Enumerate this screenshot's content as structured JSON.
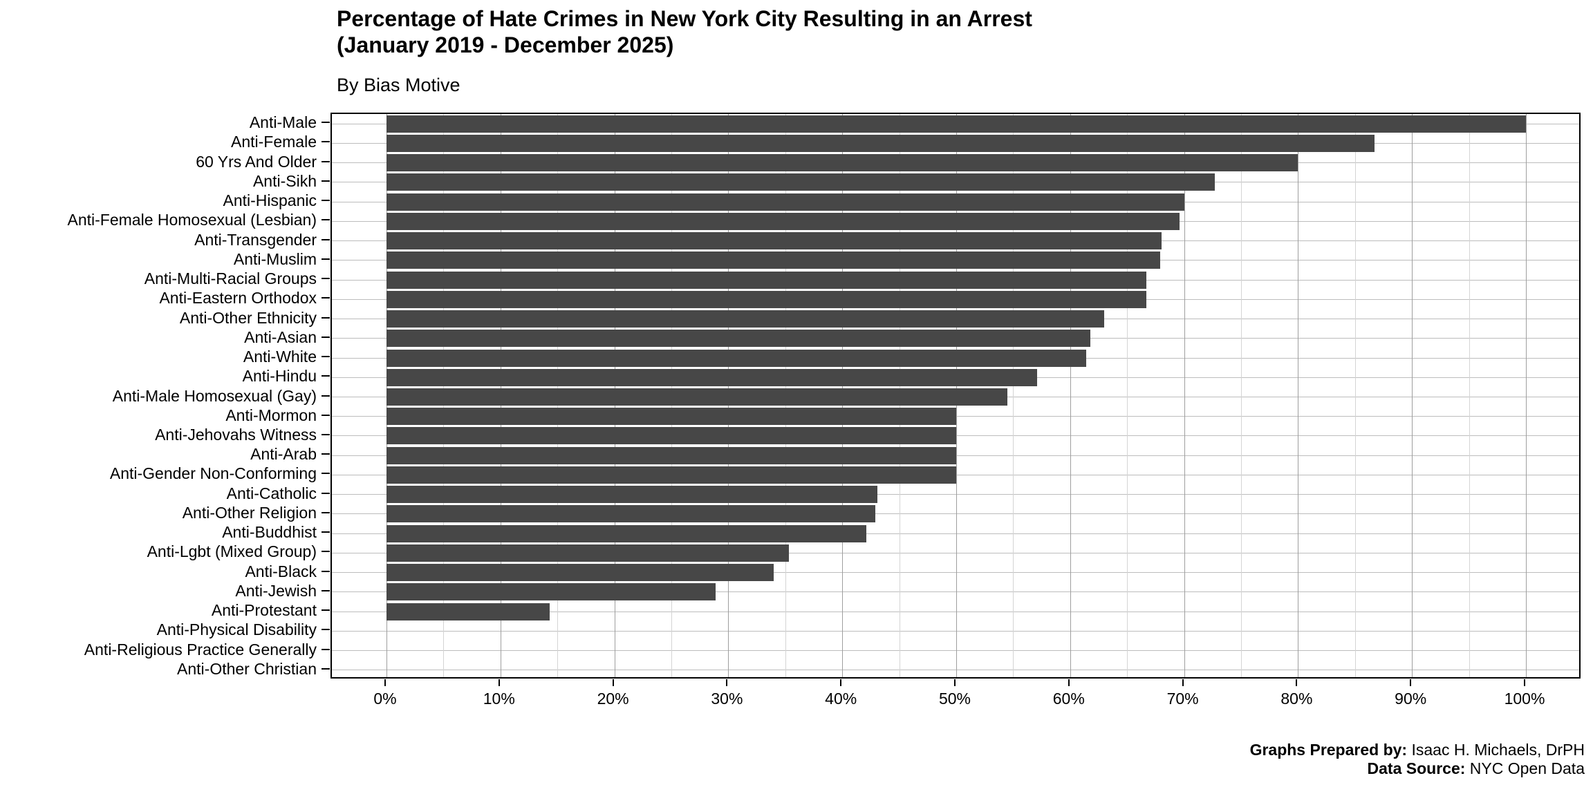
{
  "title": {
    "line1": "Percentage of Hate Crimes in New York City Resulting in an Arrest",
    "line2": "(January 2019 - December 2025)"
  },
  "subtitle": "By Bias Motive",
  "chart_data": {
    "type": "bar",
    "orientation": "horizontal",
    "title": "Percentage of Hate Crimes in New York City Resulting in an Arrest (January 2019 - December 2025)",
    "subtitle": "By Bias Motive",
    "xlabel": "",
    "ylabel": "",
    "xlim": [
      0,
      100
    ],
    "x_major_step": 10,
    "x_minor_step": 5,
    "x_tick_labels": [
      "0%",
      "10%",
      "20%",
      "30%",
      "40%",
      "50%",
      "60%",
      "70%",
      "80%",
      "90%",
      "100%"
    ],
    "grid": "major-and-minor-vertical, category-horizontal",
    "legend": "none",
    "bar_color": "#474747",
    "categories": [
      "Anti-Male",
      "Anti-Female",
      "60 Yrs And Older",
      "Anti-Sikh",
      "Anti-Hispanic",
      "Anti-Female Homosexual (Lesbian)",
      "Anti-Transgender",
      "Anti-Muslim",
      "Anti-Multi-Racial Groups",
      "Anti-Eastern Orthodox",
      "Anti-Other Ethnicity",
      "Anti-Asian",
      "Anti-White",
      "Anti-Hindu",
      "Anti-Male Homosexual (Gay)",
      "Anti-Mormon",
      "Anti-Jehovahs Witness",
      "Anti-Arab",
      "Anti-Gender Non-Conforming",
      "Anti-Catholic",
      "Anti-Other Religion",
      "Anti-Buddhist",
      "Anti-Lgbt (Mixed Group)",
      "Anti-Black",
      "Anti-Jewish",
      "Anti-Protestant",
      "Anti-Physical Disability",
      "Anti-Religious Practice Generally",
      "Anti-Other Christian"
    ],
    "values": [
      100,
      86.7,
      80,
      72.7,
      70,
      69.6,
      68,
      67.9,
      66.7,
      66.7,
      63,
      61.8,
      61.4,
      57.1,
      54.5,
      50,
      50,
      50,
      50,
      43.1,
      42.9,
      42.1,
      35.3,
      34,
      28.9,
      14.3,
      0,
      0,
      0
    ]
  },
  "footer": {
    "prepared_by_label": "Graphs Prepared by:",
    "prepared_by_value": "Isaac H. Michaels, DrPH",
    "source_label": "Data Source:",
    "source_value": "NYC Open Data"
  }
}
